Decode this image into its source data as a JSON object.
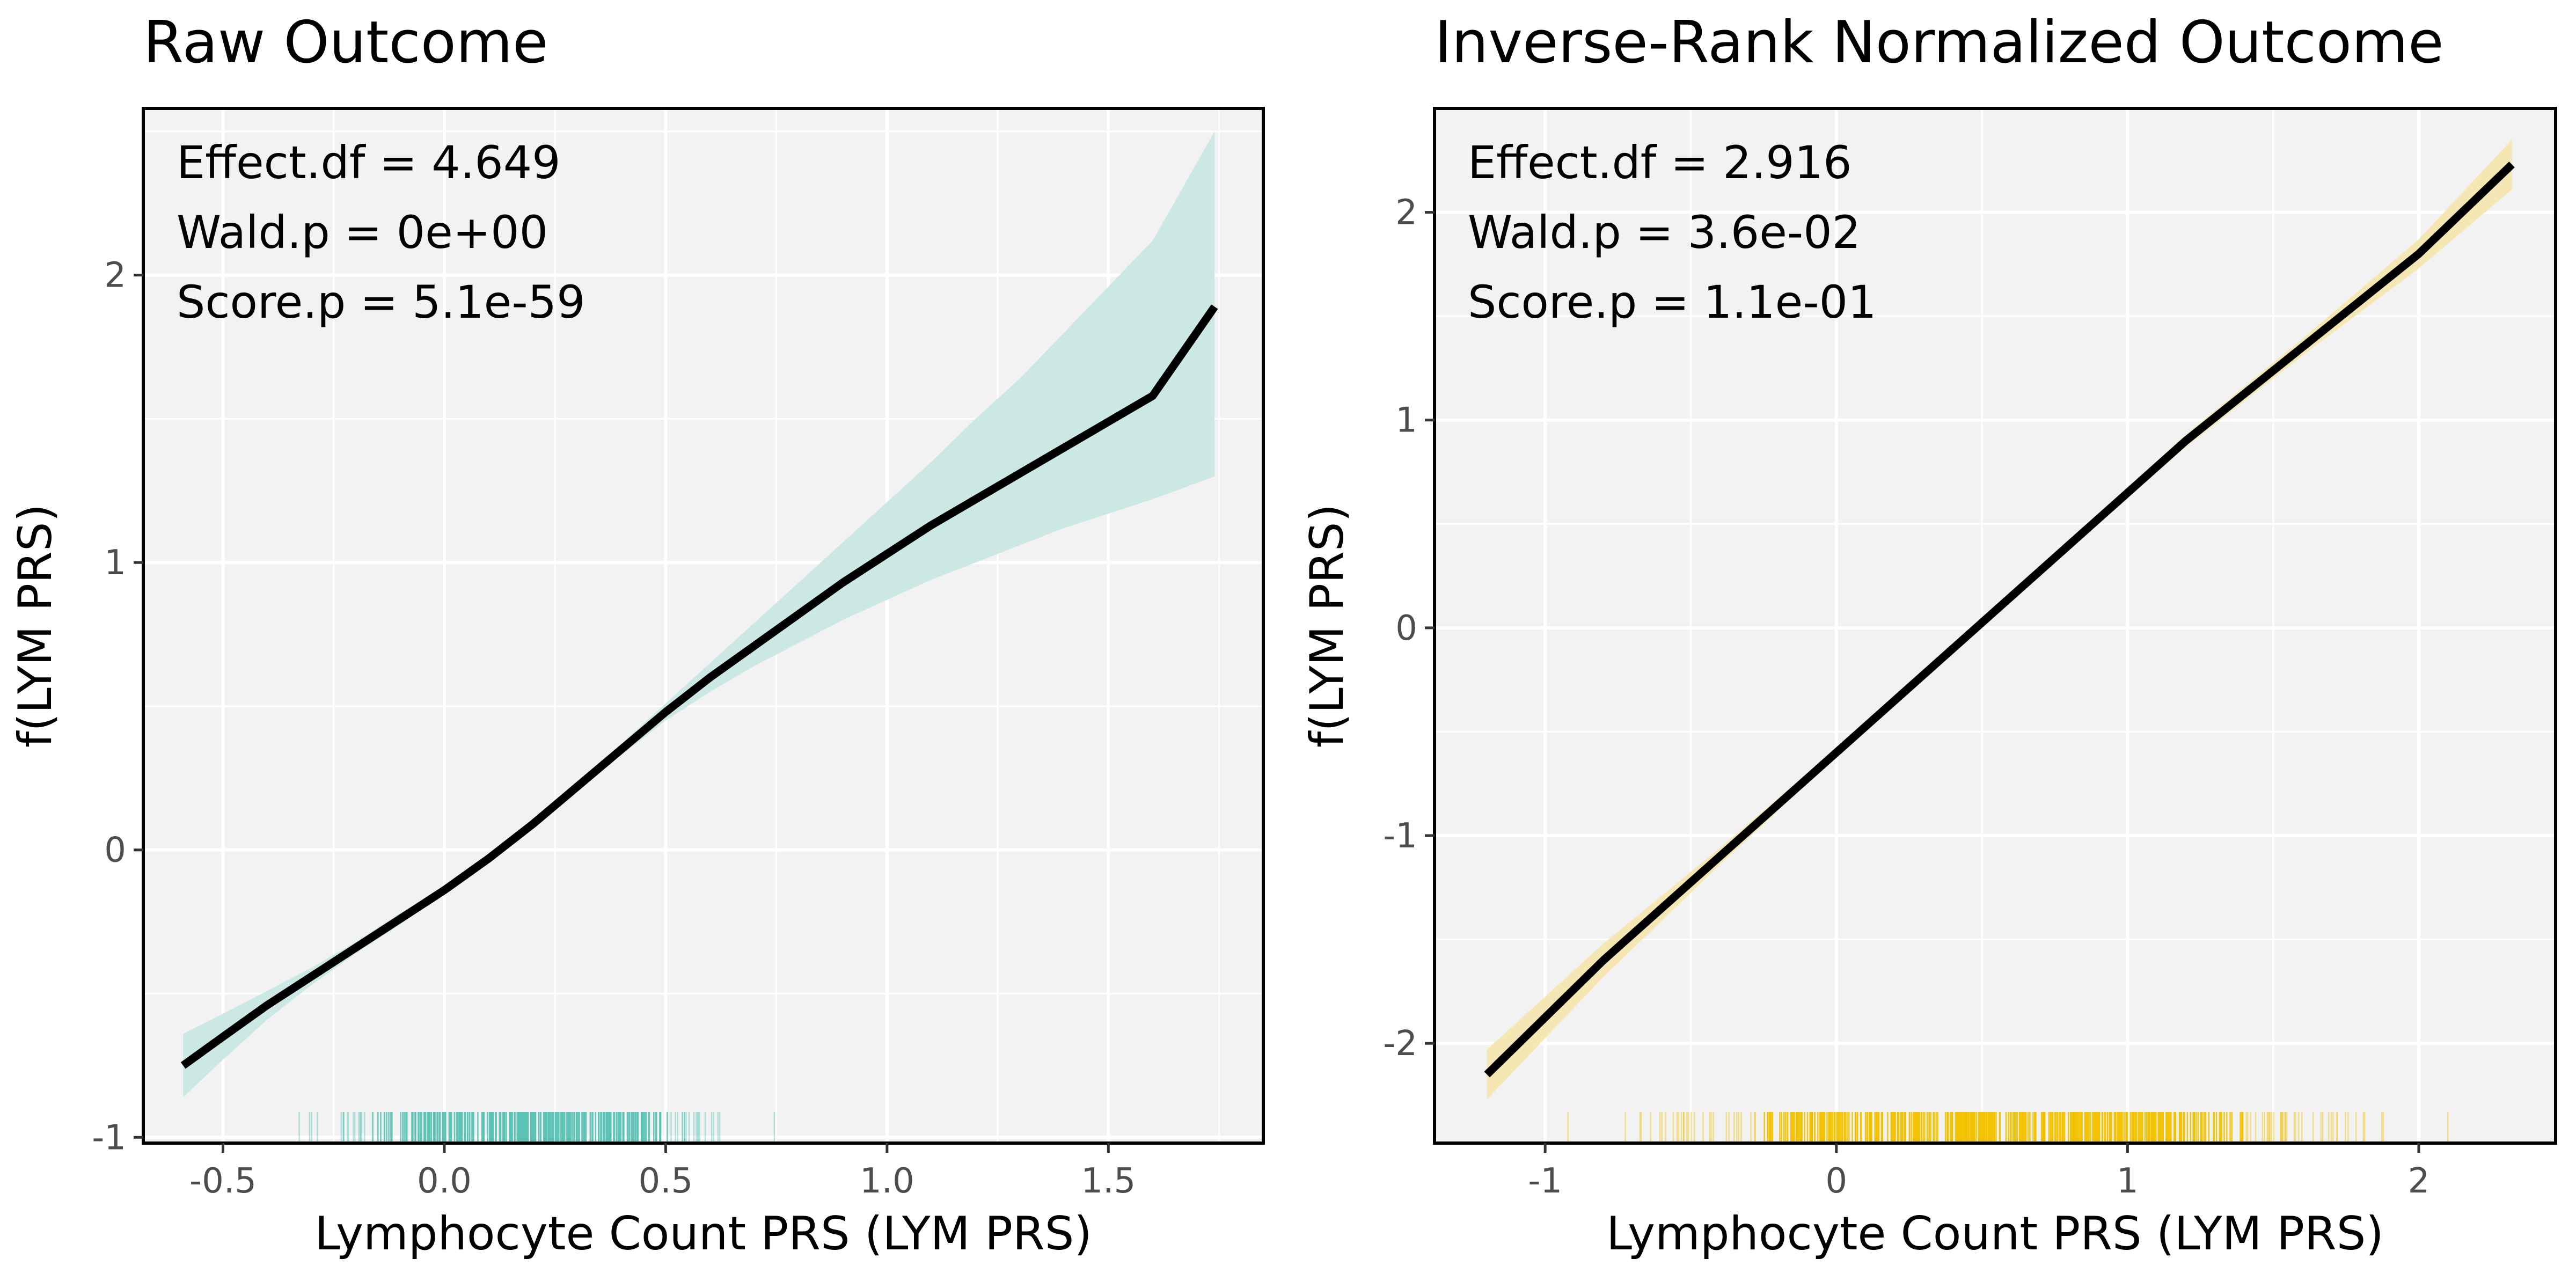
{
  "chart_data": [
    {
      "type": "line",
      "title": "Raw Outcome",
      "xlabel": "Lymphocyte Count PRS (LYM PRS)",
      "ylabel": "f(LYM PRS)",
      "xlim": [
        -0.68,
        1.85
      ],
      "ylim": [
        -1.02,
        2.58
      ],
      "xticks": [
        -0.5,
        0.0,
        0.5,
        1.0,
        1.5
      ],
      "xtick_labels": [
        "-0.5",
        "0.0",
        "0.5",
        "1.0",
        "1.5"
      ],
      "yticks": [
        -1,
        0,
        1,
        2
      ],
      "ytick_labels": [
        "-1",
        "0",
        "1",
        "2"
      ],
      "grid": true,
      "annotations": [
        "Effect.df = 4.649",
        "Wald.p = 0e+00",
        "Score.p = 5.1e-59"
      ],
      "series": [
        {
          "x": [
            -0.59,
            -0.5,
            -0.4,
            -0.3,
            -0.2,
            -0.1,
            0.0,
            0.1,
            0.2,
            0.3,
            0.4,
            0.5,
            0.6,
            0.7,
            0.8,
            0.9,
            1.0,
            1.1,
            1.2,
            1.3,
            1.4,
            1.5,
            1.6,
            1.74
          ],
          "y": [
            -0.75,
            -0.65,
            -0.54,
            -0.44,
            -0.34,
            -0.24,
            -0.14,
            -0.03,
            0.09,
            0.22,
            0.35,
            0.48,
            0.6,
            0.71,
            0.82,
            0.93,
            1.03,
            1.13,
            1.22,
            1.31,
            1.4,
            1.49,
            1.58,
            1.89
          ],
          "lower": [
            -0.86,
            -0.73,
            -0.59,
            -0.47,
            -0.36,
            -0.26,
            -0.15,
            -0.04,
            0.08,
            0.21,
            0.33,
            0.45,
            0.55,
            0.64,
            0.72,
            0.8,
            0.87,
            0.94,
            1.0,
            1.06,
            1.12,
            1.17,
            1.22,
            1.3
          ],
          "upper": [
            -0.64,
            -0.57,
            -0.49,
            -0.41,
            -0.32,
            -0.22,
            -0.13,
            -0.02,
            0.1,
            0.23,
            0.37,
            0.51,
            0.65,
            0.79,
            0.93,
            1.07,
            1.21,
            1.35,
            1.5,
            1.64,
            1.8,
            1.96,
            2.12,
            2.5
          ]
        }
      ],
      "rug_range": [
        -0.49,
        0.84
      ],
      "colors": {
        "band": "#cce8e4",
        "rug": "#5cc3b6",
        "line": "#000000",
        "panel": "#f2f2f2"
      }
    },
    {
      "type": "line",
      "title": "Inverse-Rank Normalized Outcome",
      "xlabel": "Lymphocyte Count PRS (LYM PRS)",
      "ylabel": "f(LYM PRS)",
      "xlim": [
        -1.38,
        2.47
      ],
      "ylim": [
        -2.48,
        2.5
      ],
      "xticks": [
        -1,
        0,
        1,
        2
      ],
      "xtick_labels": [
        "-1",
        "0",
        "1",
        "2"
      ],
      "yticks": [
        -2,
        -1,
        0,
        1,
        2
      ],
      "ytick_labels": [
        "-2",
        "-1",
        "0",
        "1",
        "2"
      ],
      "grid": true,
      "annotations": [
        "Effect.df = 2.916",
        "Wald.p = 3.6e-02",
        "Score.p = 1.1e-01"
      ],
      "series": [
        {
          "x": [
            -1.2,
            -0.8,
            -0.4,
            0.0,
            0.4,
            0.8,
            1.2,
            1.6,
            2.0,
            2.32
          ],
          "y": [
            -2.15,
            -1.6,
            -1.1,
            -0.6,
            -0.1,
            0.4,
            0.9,
            1.35,
            1.8,
            2.23
          ],
          "lower": [
            -2.27,
            -1.68,
            -1.14,
            -0.62,
            -0.12,
            0.38,
            0.87,
            1.31,
            1.73,
            2.11
          ],
          "upper": [
            -2.03,
            -1.52,
            -1.06,
            -0.58,
            -0.08,
            0.42,
            0.93,
            1.39,
            1.87,
            2.35
          ]
        }
      ],
      "rug_range": [
        -1.12,
        2.25
      ],
      "colors": {
        "band": "#f5e7b3",
        "rug": "#f2c200",
        "line": "#000000",
        "panel": "#f2f2f2"
      }
    }
  ]
}
